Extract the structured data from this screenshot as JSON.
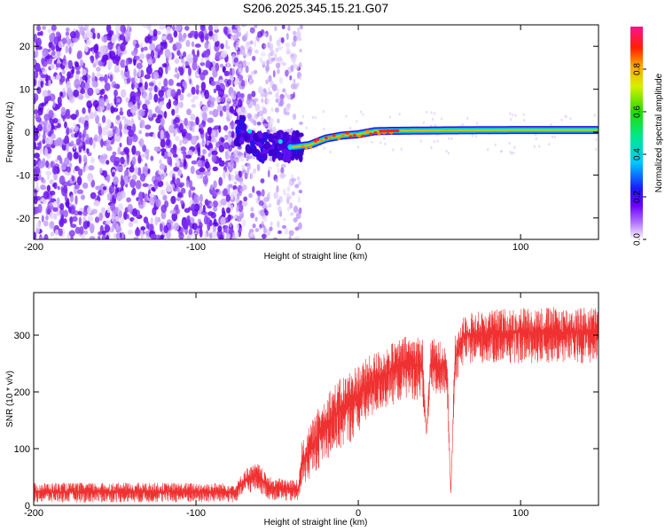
{
  "figure": {
    "title": "S206.2025.345.15.21.G07"
  },
  "chart_data": [
    {
      "id": "spectrogram",
      "type": "heatmap",
      "title": "",
      "xlabel": "Height of straight line (km)",
      "ylabel": "Frequency (Hz)",
      "xlim": [
        -200,
        148
      ],
      "ylim": [
        -25,
        25
      ],
      "xticks": [
        -200,
        -100,
        0,
        100
      ],
      "xtick_labels": [
        "-200",
        "-100",
        "0",
        "100"
      ],
      "yticks": [
        -20,
        -10,
        0,
        10,
        20
      ],
      "ytick_labels": [
        "-20",
        "-10",
        "0",
        "10",
        "20"
      ],
      "colorbar": {
        "label": "Normalized spectral amplitude",
        "range": [
          0,
          1
        ],
        "ticks": [
          0.0,
          0.2,
          0.4,
          0.6,
          0.8
        ],
        "tick_labels": [
          "0.0",
          "0.2",
          "0.4",
          "0.6",
          "0.8"
        ]
      },
      "features": {
        "noise_region_x": [
          -200,
          -35
        ],
        "faint_noise_region_x": [
          -80,
          -35
        ],
        "signal_track": [
          {
            "x": -70,
            "f": -1.5
          },
          {
            "x": -60,
            "f": -3.5
          },
          {
            "x": -50,
            "f": -3.0
          },
          {
            "x": -40,
            "f": -3.5
          },
          {
            "x": -30,
            "f": -3.0
          },
          {
            "x": -20,
            "f": -1.5
          },
          {
            "x": -10,
            "f": -0.8
          },
          {
            "x": 0,
            "f": -0.5
          },
          {
            "x": 10,
            "f": 0.2
          },
          {
            "x": 20,
            "f": 0.3
          },
          {
            "x": 50,
            "f": 0.4
          },
          {
            "x": 100,
            "f": 0.5
          },
          {
            "x": 148,
            "f": 0.5
          }
        ]
      }
    },
    {
      "id": "snr",
      "type": "line",
      "title": "",
      "xlabel": "Height of straight line (km)",
      "ylabel": "SNR (10 * v/v)",
      "xlim": [
        -200,
        148
      ],
      "ylim": [
        0,
        375
      ],
      "xticks": [
        -200,
        -100,
        0,
        100
      ],
      "xtick_labels": [
        "-200",
        "-100",
        "0",
        "100"
      ],
      "yticks": [
        0,
        100,
        200,
        300
      ],
      "ytick_labels": [
        "0",
        "100",
        "200",
        "300"
      ],
      "color": "#ef3131",
      "series": [
        {
          "name": "SNR",
          "envelope": [
            {
              "x": -200,
              "low": 5,
              "high": 40
            },
            {
              "x": -75,
              "low": 5,
              "high": 40
            },
            {
              "x": -70,
              "low": 20,
              "high": 65
            },
            {
              "x": -62,
              "low": 25,
              "high": 75
            },
            {
              "x": -55,
              "low": 10,
              "high": 50
            },
            {
              "x": -37,
              "low": 5,
              "high": 45
            },
            {
              "x": -35,
              "low": 30,
              "high": 110
            },
            {
              "x": -20,
              "low": 80,
              "high": 200
            },
            {
              "x": -5,
              "low": 110,
              "high": 240
            },
            {
              "x": 10,
              "low": 160,
              "high": 270
            },
            {
              "x": 30,
              "low": 190,
              "high": 300
            },
            {
              "x": 42,
              "low": 180,
              "high": 300
            },
            {
              "x": 50,
              "low": 190,
              "high": 290
            },
            {
              "x": 60,
              "low": 210,
              "high": 300
            },
            {
              "x": 65,
              "low": 250,
              "high": 340
            },
            {
              "x": 100,
              "low": 250,
              "high": 350
            },
            {
              "x": 148,
              "low": 250,
              "high": 350
            }
          ],
          "dips": [
            {
              "x": 42,
              "depth_to": 125
            },
            {
              "x": 57,
              "depth_to": 20
            }
          ]
        }
      ]
    }
  ]
}
